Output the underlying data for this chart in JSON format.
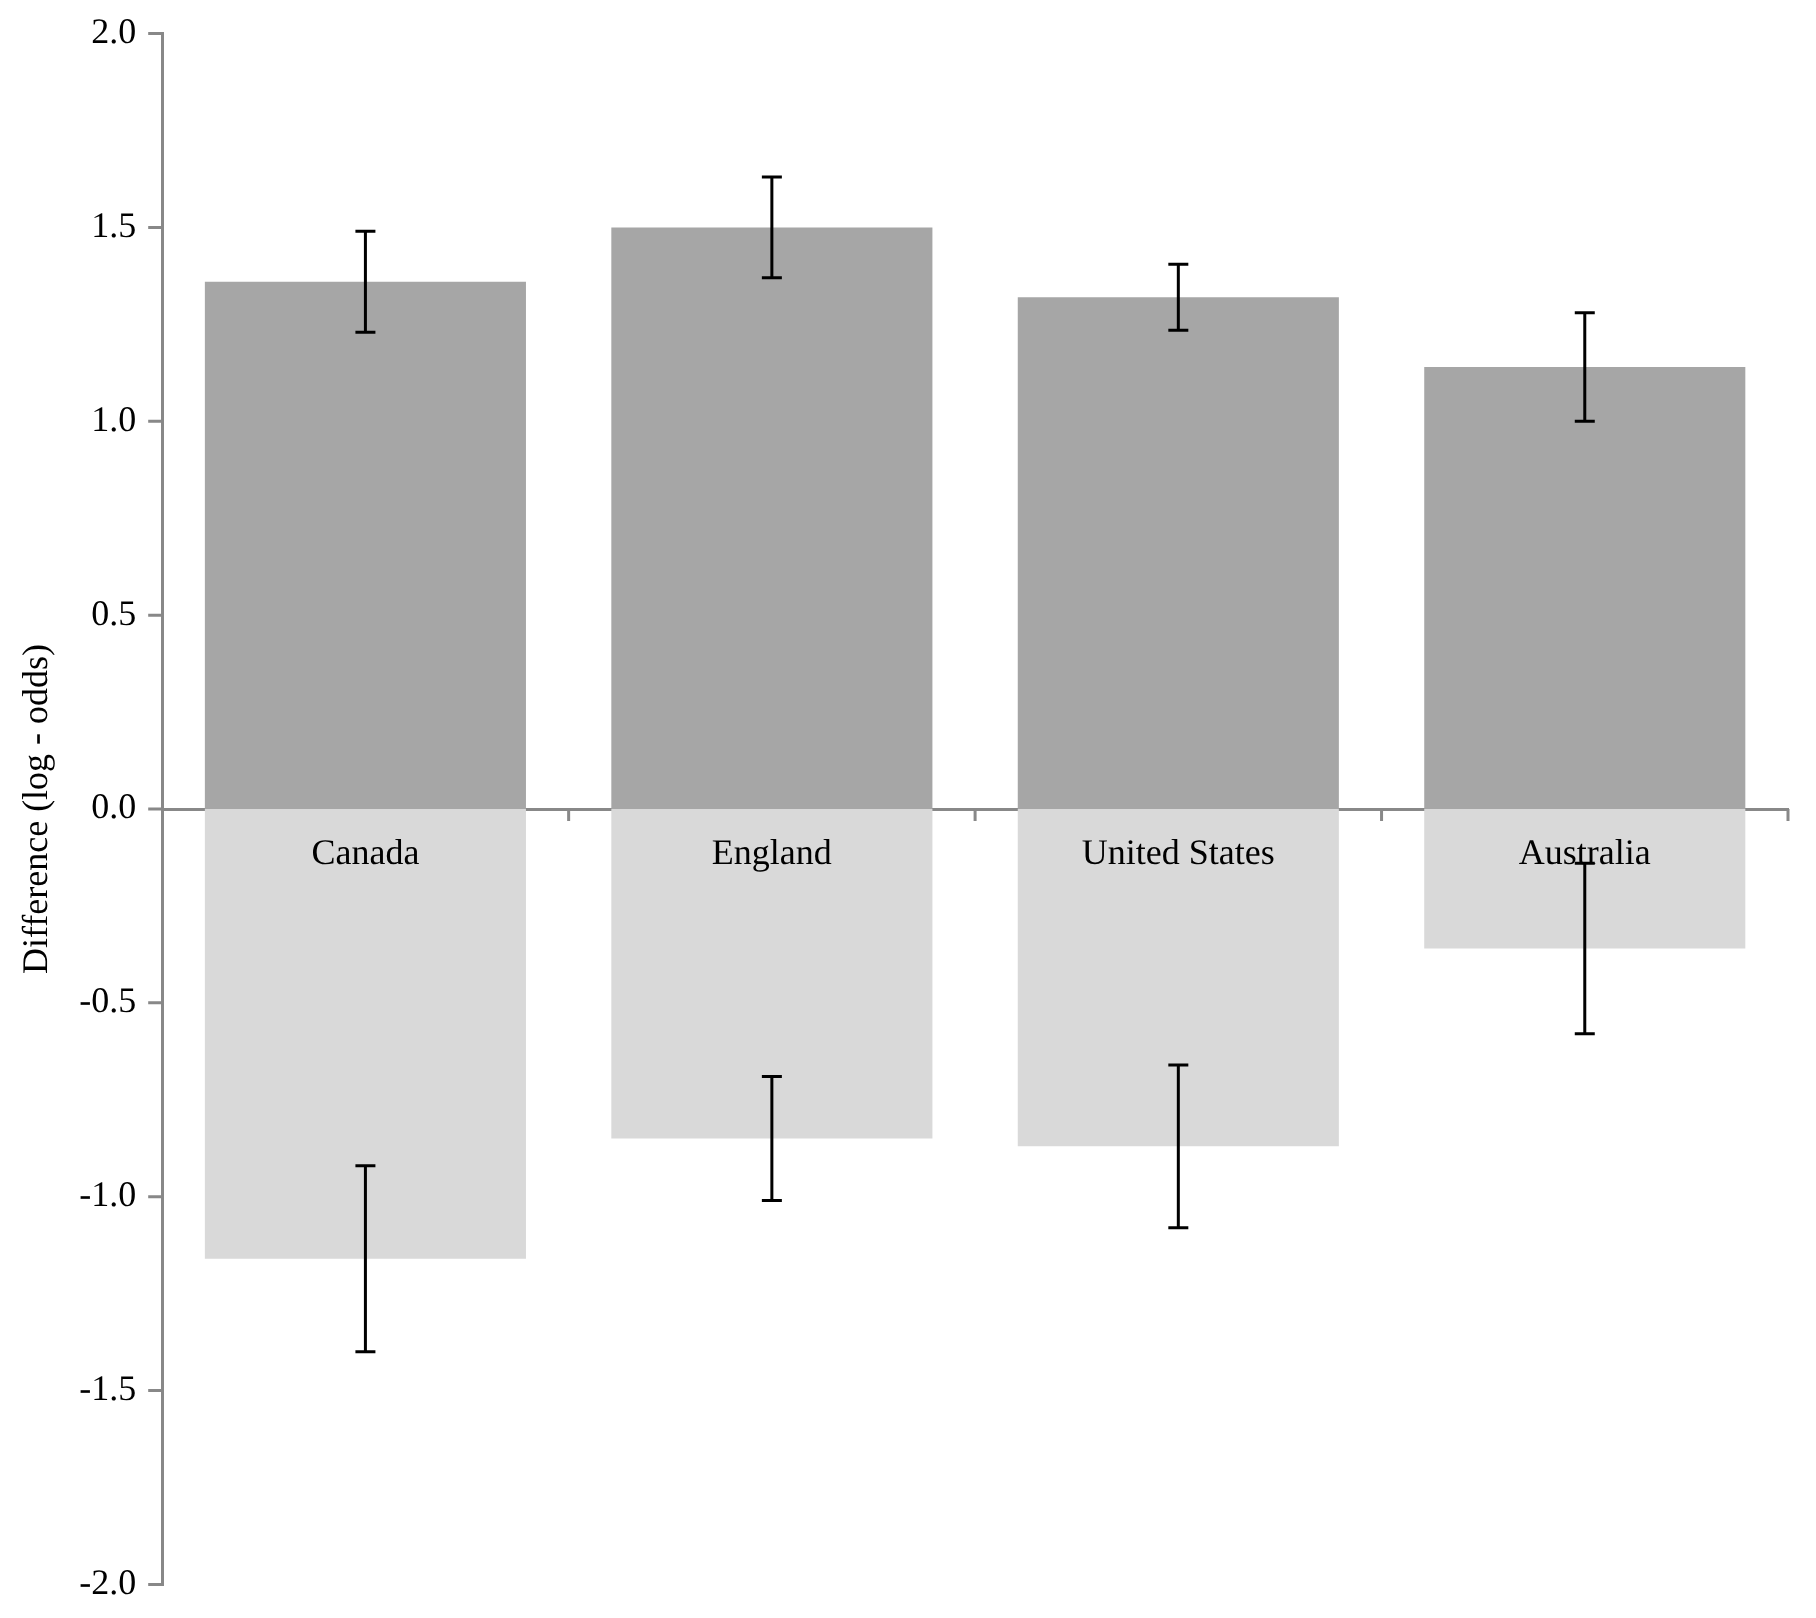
{
  "chart_data": {
    "type": "bar",
    "stacked": true,
    "ylabel": "Difference (log - odds)",
    "categories": [
      "Canada",
      "England",
      "United States",
      "Australia"
    ],
    "series": [
      {
        "color": "#a6a6a6",
        "values": [
          1.36,
          1.5,
          1.32,
          1.14
        ],
        "errors": [
          0.13,
          0.13,
          0.085,
          0.14
        ]
      },
      {
        "color": "#d9d9d9",
        "values": [
          -1.16,
          -0.85,
          -0.87,
          -0.36
        ],
        "errors": [
          0.24,
          0.16,
          0.21,
          0.22
        ]
      }
    ],
    "ylim": [
      -2,
      2
    ],
    "yticks": [
      {
        "value": -2,
        "label": "-2.0"
      },
      {
        "value": -1.5,
        "label": "-1.5"
      },
      {
        "value": -1,
        "label": "-1.0"
      },
      {
        "value": -0.5,
        "label": "-0.5"
      },
      {
        "value": 0,
        "label": "0.0"
      },
      {
        "value": 0.5,
        "label": "0.5"
      },
      {
        "value": 1,
        "label": "1.0"
      },
      {
        "value": 1.5,
        "label": "1.5"
      },
      {
        "value": 2,
        "label": "2.0"
      }
    ],
    "grid": false,
    "legend": false
  }
}
